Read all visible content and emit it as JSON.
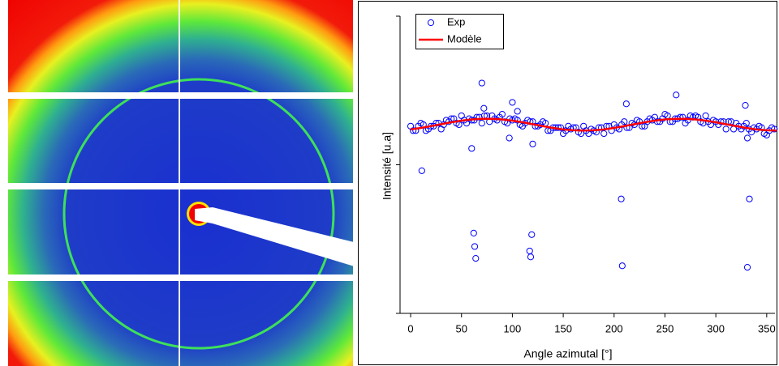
{
  "chart_data": {
    "type": "scatter",
    "xlabel": "Angle azimutal [°]",
    "ylabel": "Intensité [u.a]",
    "xlim": [
      -10.4,
      358.1
    ],
    "xticks": [
      0,
      50,
      100,
      150,
      200,
      250,
      300,
      350
    ],
    "ylim": [
      0,
      2
    ],
    "yticks": [
      0,
      1,
      2
    ],
    "ytick_labels": false,
    "legend": "upper left",
    "series": [
      {
        "name": "Exp",
        "color": "#0000ff",
        "kind": "markers",
        "x": [
          0,
          5,
          10,
          15,
          20,
          25,
          30,
          35,
          40,
          45,
          50,
          55,
          60,
          65,
          70,
          75,
          80,
          85,
          90,
          95,
          100,
          105,
          110,
          115,
          120,
          125,
          130,
          135,
          140,
          145,
          150,
          155,
          160,
          165,
          170,
          175,
          180,
          185,
          190,
          195,
          200,
          205,
          210,
          215,
          220,
          225,
          230,
          235,
          240,
          245,
          250,
          255,
          260,
          265,
          270,
          275,
          280,
          285,
          290,
          295,
          300,
          305,
          310,
          315,
          320,
          325,
          330,
          335,
          340,
          345,
          350,
          355,
          2.5,
          7.5,
          12.5,
          17.5,
          22.5,
          27.5,
          32.5,
          37.5,
          42.5,
          47.5,
          52.5,
          57.5,
          62.5,
          67.5,
          72.5,
          77.5,
          82.5,
          87.5,
          92.5,
          97.5,
          102.5,
          107.5,
          112.5,
          117.5,
          122.5,
          127.5,
          132.5,
          137.5,
          142.5,
          147.5,
          152.5,
          157.5,
          162.5,
          167.5,
          172.5,
          177.5,
          182.5,
          187.5,
          192.5,
          197.5,
          202.5,
          207.5,
          212.5,
          217.5,
          222.5,
          227.5,
          232.5,
          237.5,
          242.5,
          247.5,
          252.5,
          257.5,
          262.5,
          267.5,
          272.5,
          277.5,
          282.5,
          287.5,
          292.5,
          297.5,
          302.5,
          307.5,
          312.5,
          317.5,
          322.5,
          327.5,
          332.5,
          337.5,
          342.5,
          347.5,
          352.5,
          357.5,
          11,
          60,
          62,
          63,
          64,
          70,
          72,
          100,
          105,
          117,
          118,
          119,
          120,
          207,
          208,
          212,
          261,
          329,
          331,
          333,
          331,
          97
        ],
        "values": [
          1.26,
          1.23,
          1.28,
          1.23,
          1.26,
          1.28,
          1.24,
          1.3,
          1.31,
          1.28,
          1.33,
          1.28,
          1.3,
          1.32,
          1.28,
          1.33,
          1.33,
          1.3,
          1.34,
          1.28,
          1.3,
          1.3,
          1.26,
          1.3,
          1.29,
          1.26,
          1.29,
          1.23,
          1.25,
          1.25,
          1.21,
          1.26,
          1.25,
          1.22,
          1.26,
          1.21,
          1.23,
          1.25,
          1.21,
          1.26,
          1.27,
          1.24,
          1.29,
          1.25,
          1.27,
          1.29,
          1.26,
          1.31,
          1.32,
          1.29,
          1.34,
          1.29,
          1.31,
          1.32,
          1.28,
          1.33,
          1.33,
          1.29,
          1.33,
          1.27,
          1.29,
          1.29,
          1.24,
          1.29,
          1.28,
          1.24,
          1.28,
          1.22,
          1.24,
          1.25,
          1.2,
          1.25,
          1.23,
          1.26,
          1.27,
          1.24,
          1.26,
          1.28,
          1.27,
          1.29,
          1.31,
          1.27,
          1.3,
          1.31,
          1.3,
          1.32,
          1.33,
          1.29,
          1.31,
          1.32,
          1.29,
          1.31,
          1.31,
          1.27,
          1.28,
          1.29,
          1.26,
          1.27,
          1.28,
          1.23,
          1.25,
          1.25,
          1.23,
          1.24,
          1.25,
          1.21,
          1.23,
          1.24,
          1.22,
          1.25,
          1.26,
          1.23,
          1.25,
          1.27,
          1.25,
          1.28,
          1.3,
          1.26,
          1.29,
          1.3,
          1.29,
          1.31,
          1.33,
          1.29,
          1.31,
          1.32,
          1.3,
          1.32,
          1.32,
          1.28,
          1.29,
          1.3,
          1.27,
          1.29,
          1.29,
          1.24,
          1.26,
          1.26,
          1.24,
          1.25,
          1.26,
          1.21,
          1.23,
          1.24,
          0.96,
          1.11,
          0.54,
          0.45,
          0.37,
          1.55,
          1.38,
          1.42,
          1.36,
          0.42,
          0.38,
          0.53,
          1.14,
          0.77,
          0.32,
          1.41,
          1.47,
          1.4,
          0.31,
          0.77,
          1.18,
          1.18
        ]
      },
      {
        "name": "Modèle",
        "color": "#ff0000",
        "kind": "line",
        "x": [
          0,
          10,
          20,
          30,
          40,
          50,
          60,
          70,
          80,
          90,
          100,
          110,
          120,
          130,
          140,
          150,
          160,
          170,
          180,
          190,
          200,
          210,
          220,
          230,
          240,
          250,
          260,
          270,
          280,
          290,
          300,
          310,
          320,
          330,
          340,
          350,
          360
        ],
        "values": [
          1.238,
          1.248,
          1.26,
          1.273,
          1.286,
          1.297,
          1.305,
          1.309,
          1.309,
          1.305,
          1.297,
          1.286,
          1.273,
          1.26,
          1.248,
          1.238,
          1.232,
          1.23,
          1.232,
          1.238,
          1.248,
          1.26,
          1.273,
          1.286,
          1.297,
          1.305,
          1.309,
          1.309,
          1.305,
          1.297,
          1.286,
          1.273,
          1.26,
          1.248,
          1.238,
          1.232,
          1.23
        ]
      }
    ]
  }
}
